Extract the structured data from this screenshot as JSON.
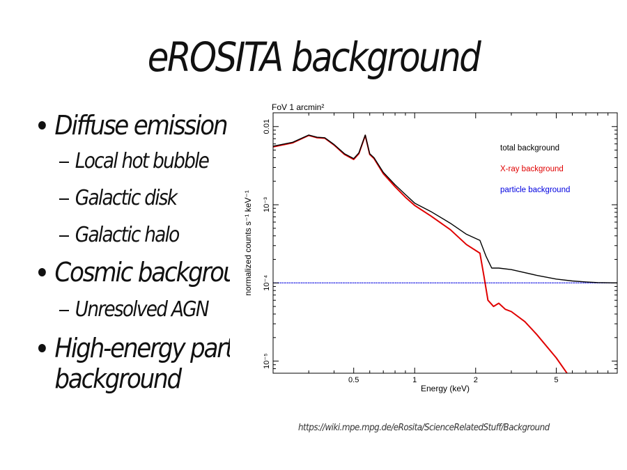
{
  "slide": {
    "title": "eROSITA background",
    "bullets": [
      {
        "label": "Diffuse emission",
        "sub": [
          "Local hot bubble",
          "Galactic disk",
          "Galactic halo"
        ]
      },
      {
        "label": "Cosmic background",
        "sub": [
          "Unresolved AGN"
        ]
      },
      {
        "label": "High-energy particle background",
        "lines": [
          "High-energy particle",
          "background"
        ],
        "sub": []
      }
    ],
    "source": "https://wiki.mpe.mpg.de/eRosita/ScienceRelatedStuff/Background"
  },
  "chart_data": {
    "type": "line",
    "title": "FoV 1 arcmin²",
    "xlabel": "Energy (keV)",
    "ylabel": "normalized counts s⁻¹ keV⁻¹",
    "xscale": "log",
    "yscale": "log",
    "xlim": [
      0.2,
      10
    ],
    "ylim": [
      7e-06,
      0.015
    ],
    "x_ticks": [
      {
        "value": 0.5,
        "label": "0.5"
      },
      {
        "value": 1,
        "label": "1"
      },
      {
        "value": 2,
        "label": "2"
      },
      {
        "value": 5,
        "label": "5"
      }
    ],
    "y_ticks": [
      {
        "value": 0.01,
        "label": "0.01"
      },
      {
        "value": 0.001,
        "label": "10⁻³"
      },
      {
        "value": 0.0001,
        "label": "10⁻⁴"
      },
      {
        "value": 1e-05,
        "label": "10⁻⁵"
      }
    ],
    "grid": false,
    "legend_position": "top-right",
    "series": [
      {
        "name": "total background",
        "color": "#000000",
        "x": [
          0.2,
          0.25,
          0.3,
          0.33,
          0.36,
          0.4,
          0.45,
          0.5,
          0.53,
          0.57,
          0.6,
          0.63,
          0.7,
          0.8,
          0.9,
          1.0,
          1.2,
          1.5,
          1.8,
          2.1,
          2.25,
          2.4,
          2.6,
          3.0,
          4.0,
          5.0,
          6.0,
          7.0,
          8.0,
          10.0
        ],
        "y": [
          0.0056,
          0.0063,
          0.0078,
          0.0073,
          0.0072,
          0.0059,
          0.0045,
          0.0039,
          0.0046,
          0.0078,
          0.0045,
          0.004,
          0.0026,
          0.0018,
          0.00135,
          0.00105,
          0.00082,
          0.00058,
          0.00042,
          0.00035,
          0.00022,
          0.000155,
          0.000155,
          0.000148,
          0.000125,
          0.000112,
          0.000106,
          0.000103,
          0.000101,
          0.0001
        ]
      },
      {
        "name": "X-ray background",
        "color": "#e00000",
        "x": [
          0.2,
          0.25,
          0.3,
          0.33,
          0.36,
          0.4,
          0.45,
          0.5,
          0.53,
          0.57,
          0.6,
          0.63,
          0.7,
          0.8,
          0.9,
          1.0,
          1.2,
          1.5,
          1.8,
          2.1,
          2.2,
          2.3,
          2.45,
          2.6,
          2.8,
          3.0,
          3.5,
          4.0,
          5.0,
          6.0
        ],
        "y": [
          0.0055,
          0.0062,
          0.0077,
          0.0072,
          0.0071,
          0.0058,
          0.0044,
          0.0038,
          0.0045,
          0.0077,
          0.0044,
          0.0039,
          0.0025,
          0.0017,
          0.00125,
          0.00098,
          0.00072,
          0.00048,
          0.00031,
          0.00024,
          0.00012,
          6e-05,
          5e-05,
          5.5e-05,
          4.6e-05,
          4.3e-05,
          3.2e-05,
          2.2e-05,
          1.1e-05,
          5.6e-06
        ]
      },
      {
        "name": "particle background",
        "color": "#0000e0",
        "x": [
          0.2,
          10.0
        ],
        "y": [
          0.0001,
          0.0001
        ]
      }
    ]
  }
}
